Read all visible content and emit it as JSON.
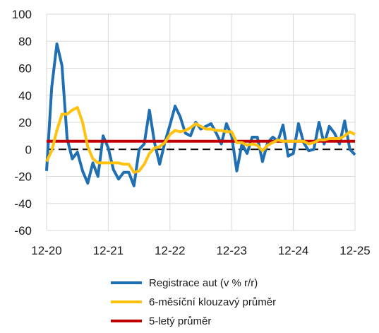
{
  "chart_data": {
    "type": "line",
    "ylim": [
      -60,
      100
    ],
    "yticks": [
      -60,
      -40,
      -20,
      0,
      20,
      40,
      60,
      80,
      100
    ],
    "xlim": [
      0,
      60
    ],
    "xticks": [
      {
        "pos": 0,
        "label": "12-20"
      },
      {
        "pos": 12,
        "label": "12-21"
      },
      {
        "pos": 24,
        "label": "12-22"
      },
      {
        "pos": 36,
        "label": "12-23"
      },
      {
        "pos": 48,
        "label": "12-24"
      },
      {
        "pos": 60,
        "label": "12-25"
      }
    ],
    "grid": true,
    "zero_line": "dashed",
    "legend_position": "bottom",
    "series": [
      {
        "name": "Registrace aut (v % r/r)",
        "color": "#1f6fb2",
        "x": [
          0,
          1,
          2,
          3,
          4,
          5,
          6,
          7,
          8,
          9,
          10,
          11,
          12,
          13,
          14,
          15,
          16,
          17,
          18,
          19,
          20,
          21,
          22,
          23,
          24,
          25,
          26,
          27,
          28,
          29,
          30,
          31,
          32,
          33,
          34,
          35,
          36,
          37,
          38,
          39,
          40,
          41,
          42,
          43,
          44,
          45,
          46,
          47,
          48,
          49,
          50,
          51,
          52,
          53,
          54,
          55,
          56,
          57,
          58,
          59,
          60
        ],
        "values": [
          -16,
          46,
          78,
          62,
          8,
          -7,
          -2,
          -16,
          -25,
          -10,
          -20,
          10,
          1,
          -15,
          -22,
          -17,
          -17,
          -27,
          0,
          4,
          29,
          5,
          -11,
          5,
          18,
          32,
          24,
          12,
          10,
          20,
          15,
          17,
          19,
          12,
          4,
          19,
          10,
          -16,
          4,
          -3,
          9,
          9,
          -9,
          5,
          9,
          6,
          18,
          -5,
          -3,
          19,
          5,
          -1,
          0,
          20,
          4,
          17,
          12,
          4,
          21,
          0,
          -4
        ]
      },
      {
        "name": "6-měsíční klouzavý průměr",
        "color": "#ffc20e",
        "x": [
          0,
          1,
          2,
          3,
          4,
          5,
          6,
          7,
          8,
          9,
          10,
          11,
          12,
          13,
          14,
          15,
          16,
          17,
          18,
          19,
          20,
          21,
          22,
          23,
          24,
          25,
          26,
          27,
          28,
          29,
          30,
          31,
          32,
          33,
          34,
          35,
          36,
          37,
          38,
          39,
          40,
          41,
          42,
          43,
          44,
          45,
          46,
          47,
          48,
          49,
          50,
          51,
          52,
          53,
          54,
          55,
          56,
          57,
          58,
          59,
          60
        ],
        "values": [
          -9,
          -1,
          14,
          26,
          26,
          29,
          31,
          20,
          2,
          -7,
          -10,
          -10,
          -10,
          -10,
          -10,
          -11,
          -11,
          -17,
          -16,
          -11,
          -3,
          1,
          2,
          5,
          11,
          14,
          13,
          14,
          16,
          19,
          17,
          15,
          15,
          14,
          14,
          13,
          13,
          5,
          5,
          3,
          4,
          3,
          -1,
          3,
          5,
          7,
          6,
          6,
          6,
          6,
          6,
          4,
          5,
          7,
          7,
          8,
          8,
          8,
          10,
          13,
          11
        ]
      },
      {
        "name": "5-letý průměr",
        "color": "#c00000",
        "x": [
          0,
          60
        ],
        "values": [
          6,
          6
        ]
      }
    ]
  }
}
